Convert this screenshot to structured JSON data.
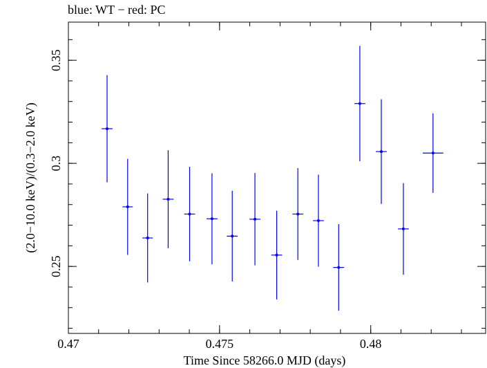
{
  "chart_data": {
    "type": "scatter",
    "title": "blue: WT − red: PC",
    "xlabel": "Time Since 58266.0 MJD (days)",
    "ylabel": "(2.0−10.0 keV)/(0.3−2.0 keV)",
    "xlim": [
      0.47,
      0.4838
    ],
    "ylim": [
      0.2175,
      0.3685
    ],
    "xticks": [
      {
        "value": 0.47,
        "label": "0.47"
      },
      {
        "value": 0.475,
        "label": "0.475"
      },
      {
        "value": 0.48,
        "label": "0.48"
      }
    ],
    "yticks": [
      {
        "value": 0.25,
        "label": "0.25"
      },
      {
        "value": 0.3,
        "label": "0.3"
      },
      {
        "value": 0.35,
        "label": "0.35"
      }
    ],
    "grid": false,
    "series": [
      {
        "color": "#0000ee",
        "points": [
          {
            "x": 0.47128,
            "xerr": 0.00018,
            "y": 0.3168,
            "yerr": 0.026
          },
          {
            "x": 0.47196,
            "xerr": 0.00017,
            "y": 0.2789,
            "yerr": 0.0233
          },
          {
            "x": 0.47262,
            "xerr": 0.00017,
            "y": 0.2638,
            "yerr": 0.0216
          },
          {
            "x": 0.4733,
            "xerr": 0.00018,
            "y": 0.2826,
            "yerr": 0.0238
          },
          {
            "x": 0.47401,
            "xerr": 0.00018,
            "y": 0.2754,
            "yerr": 0.0229
          },
          {
            "x": 0.47475,
            "xerr": 0.00018,
            "y": 0.2731,
            "yerr": 0.0221
          },
          {
            "x": 0.47542,
            "xerr": 0.00018,
            "y": 0.2647,
            "yerr": 0.022
          },
          {
            "x": 0.47617,
            "xerr": 0.00018,
            "y": 0.2729,
            "yerr": 0.0224
          },
          {
            "x": 0.47689,
            "xerr": 0.00018,
            "y": 0.2555,
            "yerr": 0.0215
          },
          {
            "x": 0.47759,
            "xerr": 0.00018,
            "y": 0.2754,
            "yerr": 0.0223
          },
          {
            "x": 0.47827,
            "xerr": 0.00018,
            "y": 0.2722,
            "yerr": 0.0223
          },
          {
            "x": 0.47894,
            "xerr": 0.00018,
            "y": 0.2495,
            "yerr": 0.021
          },
          {
            "x": 0.47964,
            "xerr": 0.00018,
            "y": 0.329,
            "yerr": 0.028
          },
          {
            "x": 0.48035,
            "xerr": 0.00018,
            "y": 0.3057,
            "yerr": 0.0254
          },
          {
            "x": 0.48108,
            "xerr": 0.00018,
            "y": 0.2682,
            "yerr": 0.0222
          },
          {
            "x": 0.48206,
            "xerr": 0.00034,
            "y": 0.305,
            "yerr": 0.0193
          }
        ]
      }
    ]
  }
}
